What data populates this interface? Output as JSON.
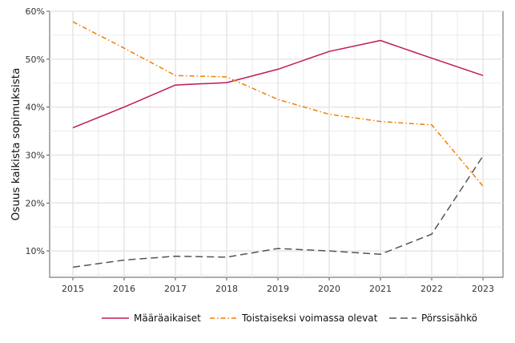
{
  "chart_data": {
    "type": "line",
    "title": "",
    "xlabel": "",
    "ylabel": "Osuus kaikista sopimuksista",
    "x": [
      2015,
      2016,
      2017,
      2018,
      2019,
      2020,
      2021,
      2022,
      2023
    ],
    "x_tick_labels": [
      "2015",
      "2016",
      "2017",
      "2018",
      "2019",
      "2020",
      "2021",
      "2022",
      "2023"
    ],
    "ylim": [
      0.045,
      0.6
    ],
    "y_ticks": [
      0.1,
      0.2,
      0.3,
      0.4,
      0.5,
      0.6
    ],
    "y_tick_labels": [
      "10%",
      "20%",
      "30%",
      "40%",
      "50%",
      "60%"
    ],
    "grid": true,
    "legend_position": "bottom",
    "series": [
      {
        "name": "Määräaikaiset",
        "color": "#c0185a",
        "dash": "solid",
        "values": [
          0.357,
          0.4,
          0.446,
          0.451,
          0.479,
          0.516,
          0.539,
          0.502,
          0.466
        ]
      },
      {
        "name": "Toistaiseksi voimassa olevat",
        "color": "#f07f00",
        "dash": "dashdot",
        "values": [
          0.578,
          0.523,
          0.466,
          0.463,
          0.416,
          0.385,
          0.37,
          0.363,
          0.235
        ]
      },
      {
        "name": "Pörssisähkö",
        "color": "#555555",
        "dash": "longdash",
        "values": [
          0.066,
          0.081,
          0.089,
          0.087,
          0.105,
          0.1,
          0.093,
          0.135,
          0.298
        ]
      }
    ]
  }
}
